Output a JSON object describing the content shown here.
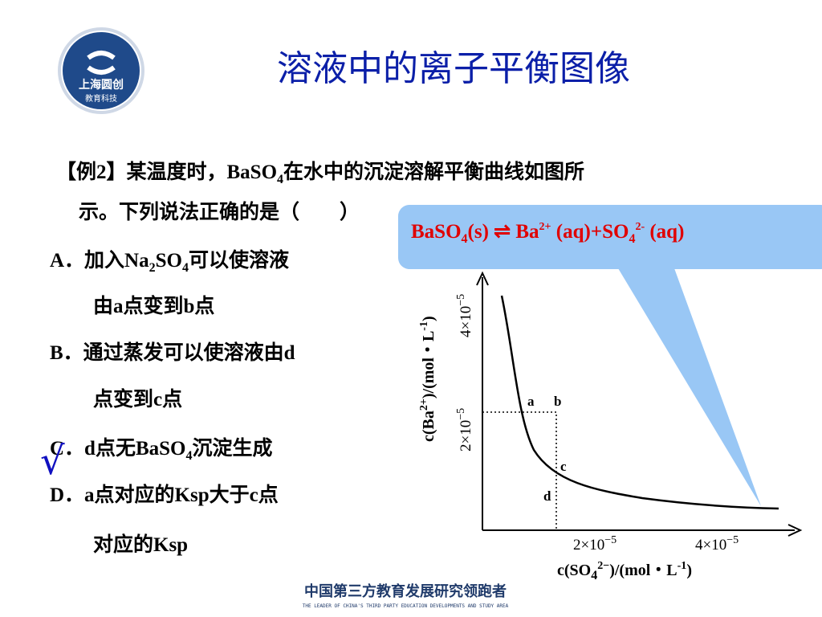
{
  "logo": {
    "name": "上海圆创",
    "tagline": "教育科技"
  },
  "title": "溶液中的离子平衡图像",
  "question": {
    "line1": [
      "【例2】某温度时，BaSO",
      "4",
      "在水中的沉淀溶解平衡曲线如图所"
    ],
    "line2": "示。下列说法正确的是（　　）"
  },
  "options": [
    {
      "line1": [
        "A．加入Na",
        "2",
        "SO",
        "4",
        "可以使溶液"
      ],
      "line2": "由a点变到b点"
    },
    {
      "line1": "B．通过蒸发可以使溶液由d",
      "line2": "点变到c点"
    },
    {
      "line1": [
        "C．d点无BaSO",
        "4",
        "沉淀生成"
      ]
    },
    {
      "line1": "D．a点对应的Ksp大于c点",
      "line2": "对应的Ksp"
    }
  ],
  "check_mark": "√",
  "equation": [
    "BaSO",
    "4",
    "(s)  ⇌  Ba",
    "2+",
    " (aq)+SO",
    "4",
    "2-",
    " (aq)"
  ],
  "graph": {
    "y_label": [
      "c(Ba",
      "2+",
      ")/(mol・L",
      "-1",
      ")"
    ],
    "x_label": [
      "c(SO",
      "4",
      "2−",
      ")/(mol・L",
      "-1",
      ")"
    ],
    "y_ticks": [
      [
        "4×10",
        "−5"
      ],
      [
        "2×10",
        "−5"
      ]
    ],
    "x_ticks": [
      [
        "2×10",
        "−5"
      ],
      [
        "4×10",
        "−5"
      ]
    ],
    "points": [
      "a",
      "b",
      "c",
      "d"
    ]
  },
  "footer": {
    "title": "中国第三方教育发展研究领跑者",
    "subtitle": "THE LEADER OF CHINA'S THIRD PARTY EDUCATION DEVELOPMENTS AND STUDY AREA"
  }
}
